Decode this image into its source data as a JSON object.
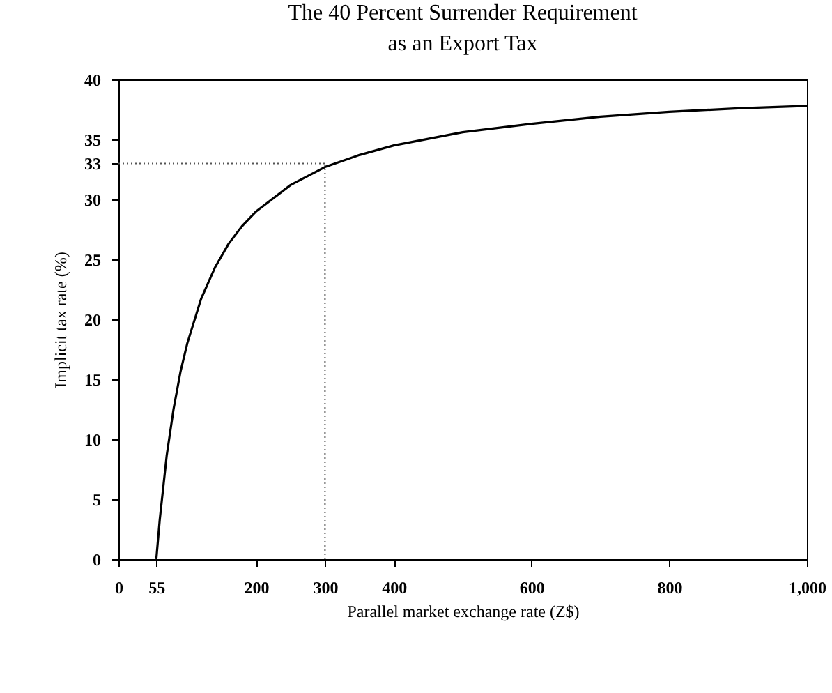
{
  "chart_data": {
    "type": "line",
    "title": "The 40 Percent Surrender Requirement",
    "subtitle": "as an Export Tax",
    "xlabel": "Parallel market exchange rate (Z$)",
    "ylabel": "Implicit tax rate (%)",
    "x": [
      55,
      60,
      70,
      80,
      90,
      100,
      120,
      140,
      160,
      180,
      200,
      250,
      300,
      350,
      400,
      500,
      600,
      700,
      800,
      900,
      1000
    ],
    "series": [
      {
        "color": "#000000",
        "values": [
          0,
          3.3,
          8.6,
          12.5,
          15.6,
          18,
          21.7,
          24.3,
          26.3,
          27.8,
          29,
          31.2,
          32.7,
          33.7,
          34.5,
          35.6,
          36.3,
          36.9,
          37.3,
          37.6,
          37.8
        ]
      }
    ],
    "xlim": [
      0,
      1000
    ],
    "xticks": [
      0,
      55,
      200,
      300,
      400,
      600,
      800,
      {
        "value": 1000,
        "label": "1,000"
      }
    ],
    "ylim": [
      0,
      40
    ],
    "yticks": [
      0,
      5,
      10,
      15,
      20,
      25,
      30,
      33,
      35,
      40
    ],
    "ref_lines": [
      {
        "axis": "x",
        "value": 300,
        "color": "#555555",
        "line_style": "dotted"
      },
      {
        "axis": "y",
        "value": 33,
        "color": "#555555",
        "line_style": "dotted"
      }
    ],
    "grid": false,
    "marker": "none",
    "line_style": "solid"
  }
}
